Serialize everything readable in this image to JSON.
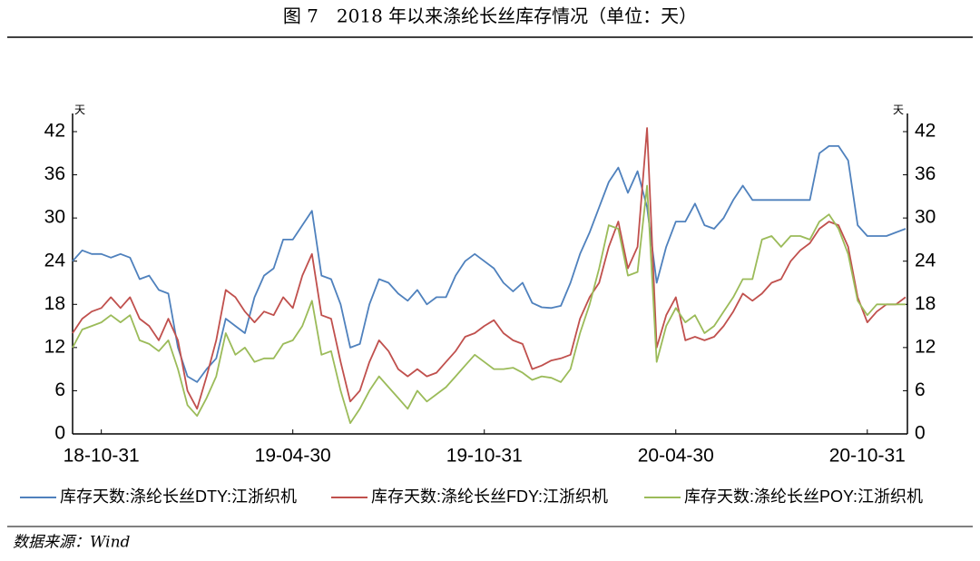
{
  "chart_data": {
    "type": "line",
    "title": "图 7　2018 年以来涤纶长丝库存情况（单位：天）",
    "y_label": "天",
    "y2_label": "天",
    "source": "数据来源：Wind",
    "categories": [
      null,
      null,
      null,
      "18-10-31",
      null,
      null,
      null,
      null,
      null,
      null,
      null,
      null,
      null,
      null,
      null,
      null,
      null,
      null,
      null,
      null,
      null,
      null,
      null,
      "19-04-30",
      null,
      null,
      null,
      null,
      null,
      null,
      null,
      null,
      null,
      null,
      null,
      null,
      null,
      null,
      null,
      null,
      null,
      null,
      null,
      "19-10-31",
      null,
      null,
      null,
      null,
      null,
      null,
      null,
      null,
      null,
      null,
      null,
      null,
      null,
      null,
      null,
      null,
      null,
      null,
      null,
      "20-04-30",
      null,
      null,
      null,
      null,
      null,
      null,
      null,
      null,
      null,
      null,
      null,
      null,
      null,
      null,
      null,
      null,
      null,
      null,
      null,
      "20-10-31",
      null,
      null,
      null,
      null
    ],
    "ylim": [
      0,
      42
    ],
    "yticks": [
      0,
      6,
      12,
      18,
      24,
      30,
      36,
      42
    ],
    "y2lim": [
      0,
      42
    ],
    "y2ticks": [
      0,
      6,
      12,
      18,
      24,
      30,
      36,
      42
    ],
    "grid": false,
    "series": [
      {
        "name": "库存天数:涤纶长丝DTY:江浙织机",
        "color": "#4f81bd",
        "values": [
          24,
          25.5,
          25,
          25,
          24.5,
          25,
          24.5,
          21.5,
          22,
          20,
          19.5,
          12,
          8,
          7.2,
          9,
          10.5,
          16,
          15,
          14,
          19,
          22,
          23,
          27,
          27,
          29,
          31,
          22,
          21.5,
          18,
          12,
          12.5,
          18,
          21.5,
          21,
          19.5,
          18.5,
          20,
          18,
          19,
          19,
          22,
          24,
          25,
          24,
          23,
          21,
          19.8,
          21,
          18.2,
          17.6,
          17.5,
          17.8,
          21,
          25,
          28,
          31.5,
          35,
          37,
          33.5,
          36.5,
          31.5,
          21,
          26,
          29.5,
          29.5,
          32,
          29,
          28.5,
          30,
          32.5,
          34.5,
          32.5,
          32.5,
          32.5,
          32.5,
          32.5,
          32.5,
          32.5,
          39,
          40,
          40,
          38,
          29,
          27.5,
          27.5,
          27.5,
          28,
          28.5
        ]
      },
      {
        "name": "库存天数:涤纶长丝FDY:江浙织机",
        "color": "#c0504d",
        "values": [
          14,
          16,
          17,
          17.5,
          19,
          17.5,
          19,
          16,
          15,
          13,
          16,
          13,
          6,
          3.5,
          8,
          13,
          20,
          19,
          17,
          15.5,
          17,
          16.5,
          19,
          17.5,
          22,
          25,
          16.5,
          16,
          10,
          4.5,
          6,
          10,
          13,
          11.5,
          9,
          8,
          9,
          8,
          8.5,
          10,
          11.5,
          13.5,
          14,
          15,
          15.8,
          14,
          13,
          12.5,
          9,
          9.5,
          10.2,
          10.5,
          11,
          16,
          19,
          21,
          26,
          29.5,
          23,
          26,
          42.5,
          12,
          16.5,
          19,
          13,
          13.5,
          13,
          13.5,
          15,
          17,
          19.5,
          18.5,
          19.5,
          21,
          21.5,
          24,
          25.5,
          26.5,
          28.5,
          29.5,
          29,
          26,
          19,
          15.5,
          17,
          18,
          18,
          19
        ]
      },
      {
        "name": "库存天数:涤纶长丝POY:江浙织机",
        "color": "#9bbb59",
        "values": [
          12,
          14.5,
          15,
          15.5,
          16.5,
          15.5,
          16.5,
          13,
          12.5,
          11.5,
          13,
          9,
          4,
          2.5,
          5,
          8,
          14,
          11,
          12,
          10,
          10.5,
          10.5,
          12.5,
          13,
          15,
          18.5,
          11,
          11.5,
          6,
          1.5,
          3.5,
          6,
          8,
          6.5,
          5,
          3.5,
          6,
          4.5,
          5.5,
          6.5,
          8,
          9.5,
          11,
          10,
          9,
          9,
          9.2,
          8.5,
          7.5,
          8,
          7.8,
          7.2,
          9,
          14,
          18,
          23,
          29,
          28.5,
          22,
          22.5,
          34.5,
          10,
          15,
          17.5,
          15.5,
          16.5,
          14,
          15,
          17,
          19,
          21.5,
          21.5,
          27,
          27.5,
          26,
          27.5,
          27.5,
          27,
          29.5,
          30.5,
          28.5,
          25,
          18.5,
          16.5,
          18,
          18,
          18,
          18
        ]
      }
    ]
  }
}
